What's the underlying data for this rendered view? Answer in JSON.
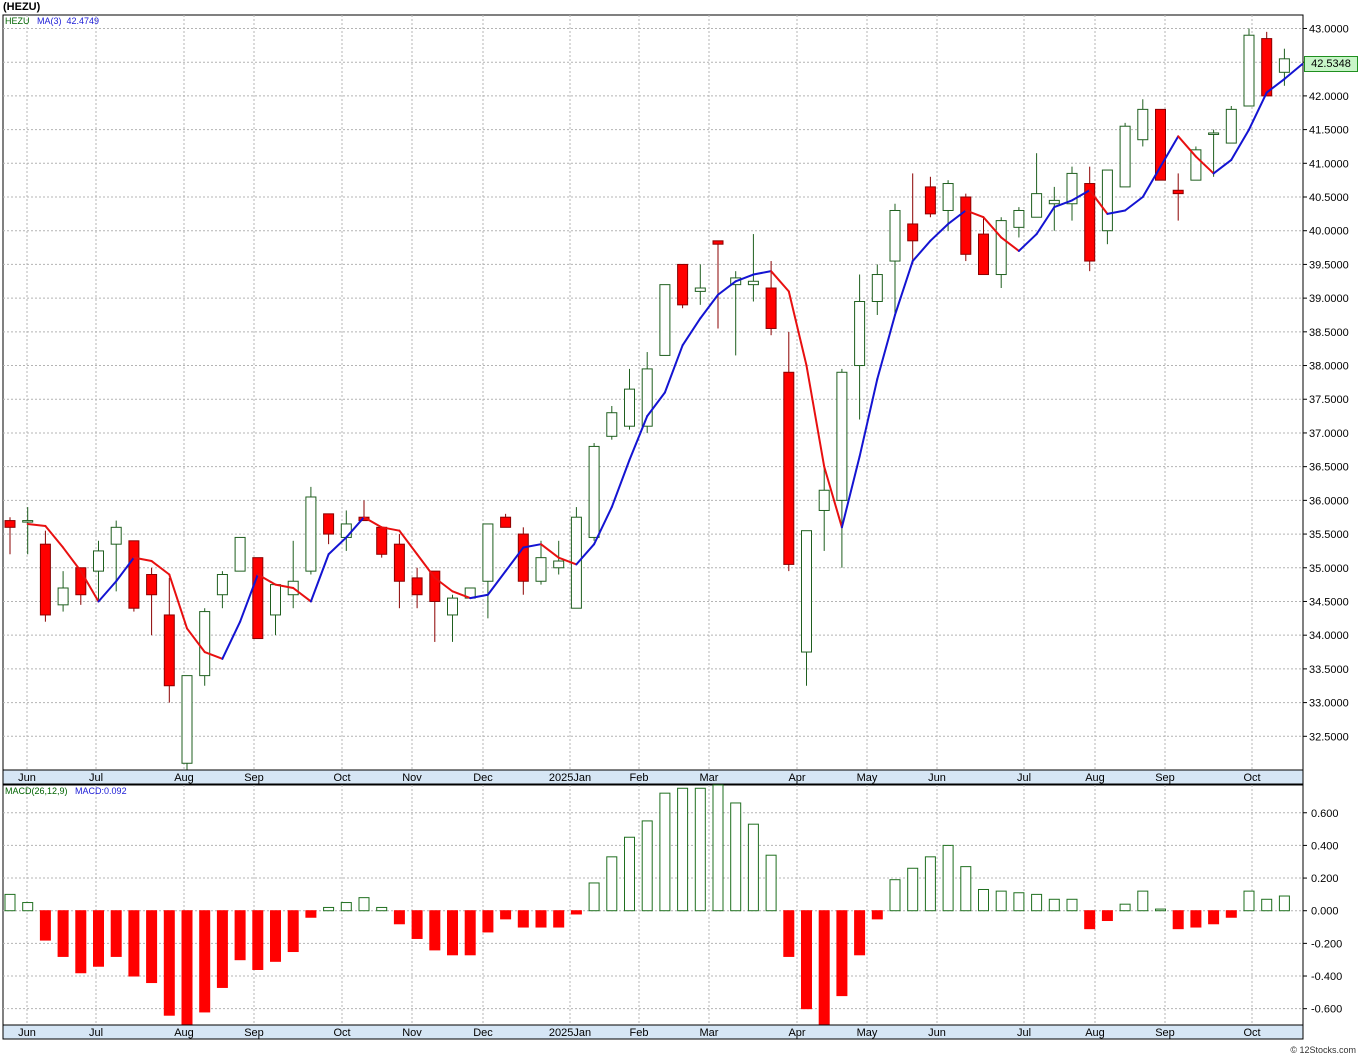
{
  "window": {
    "title": "(HEZU)",
    "credit": "© 12Stocks.com"
  },
  "price_panel": {
    "symbol": "HEZU",
    "ma_label": "MA(3)",
    "ma_value": "42.4749",
    "last_price_tag": "42.5348",
    "y_ticks": [
      "43.0000",
      "42.5000",
      "42.0000",
      "41.5000",
      "41.0000",
      "40.5000",
      "40.0000",
      "39.5000",
      "39.0000",
      "38.5000",
      "38.0000",
      "37.5000",
      "37.0000",
      "36.5000",
      "36.0000",
      "35.5000",
      "35.0000",
      "34.5000",
      "34.0000",
      "33.5000",
      "33.0000",
      "32.5000"
    ],
    "x_labels": [
      "Jun",
      "Jul",
      "Aug",
      "Sep",
      "Oct",
      "Nov",
      "Dec",
      "2025Jan",
      "Feb",
      "Mar",
      "Apr",
      "May",
      "Jun",
      "Jul",
      "Aug",
      "Sep",
      "Oct"
    ]
  },
  "macd_panel": {
    "label": "MACD(26,12,9)",
    "value_label": "MACD:0.092",
    "y_ticks": [
      "0.600",
      "0.400",
      "0.200",
      "0.000",
      "-0.200",
      "-0.400",
      "-0.600"
    ],
    "x_labels": [
      "Jun",
      "Jul",
      "Aug",
      "Sep",
      "Oct",
      "Nov",
      "Dec",
      "2025Jan",
      "Feb",
      "Mar",
      "Apr",
      "May",
      "Jun",
      "Jul",
      "Aug",
      "Sep",
      "Oct"
    ]
  },
  "colors": {
    "up": "#ffffff",
    "up_border": "#1f5f1f",
    "down": "#ff0000",
    "down_border": "#8b0000",
    "ma_up": "#1414d2",
    "ma_down": "#e81010",
    "macd_up": "#ffffff",
    "macd_up_border": "#1f6f1f",
    "macd_down": "#ff0000",
    "grid": "#b4b4b4"
  },
  "chart_data": [
    {
      "type": "candlestick",
      "title": "(HEZU)",
      "ylim": [
        32.0,
        43.2
      ],
      "series_name": "HEZU",
      "overlay": "MA(3)",
      "candles": [
        {
          "o": 35.7,
          "h": 35.75,
          "l": 35.2,
          "c": 35.6
        },
        {
          "o": 35.7,
          "h": 35.9,
          "l": 35.2,
          "c": 35.7
        },
        {
          "o": 35.35,
          "h": 35.55,
          "l": 34.2,
          "c": 34.3
        },
        {
          "o": 34.45,
          "h": 34.95,
          "l": 34.35,
          "c": 34.7
        },
        {
          "o": 35.0,
          "h": 35.0,
          "l": 34.45,
          "c": 34.6
        },
        {
          "o": 34.95,
          "h": 35.4,
          "l": 34.5,
          "c": 35.25
        },
        {
          "o": 35.35,
          "h": 35.7,
          "l": 34.65,
          "c": 35.6
        },
        {
          "o": 35.4,
          "h": 35.4,
          "l": 34.35,
          "c": 34.4
        },
        {
          "o": 34.9,
          "h": 35.0,
          "l": 34.0,
          "c": 34.6
        },
        {
          "o": 34.3,
          "h": 34.85,
          "l": 33.0,
          "c": 33.25
        },
        {
          "o": 32.1,
          "h": 33.4,
          "l": 32.0,
          "c": 33.4
        },
        {
          "o": 33.4,
          "h": 34.4,
          "l": 33.25,
          "c": 34.35
        },
        {
          "o": 34.6,
          "h": 34.95,
          "l": 34.4,
          "c": 34.9
        },
        {
          "o": 34.95,
          "h": 35.45,
          "l": 34.95,
          "c": 35.45
        },
        {
          "o": 35.15,
          "h": 35.15,
          "l": 33.95,
          "c": 33.95
        },
        {
          "o": 34.3,
          "h": 34.75,
          "l": 34.0,
          "c": 34.75
        },
        {
          "o": 34.6,
          "h": 35.4,
          "l": 34.4,
          "c": 34.8
        },
        {
          "o": 34.95,
          "h": 36.2,
          "l": 34.9,
          "c": 36.05
        },
        {
          "o": 35.8,
          "h": 35.8,
          "l": 35.35,
          "c": 35.5
        },
        {
          "o": 35.45,
          "h": 35.85,
          "l": 35.25,
          "c": 35.65
        },
        {
          "o": 35.75,
          "h": 36.0,
          "l": 35.7,
          "c": 35.7
        },
        {
          "o": 35.6,
          "h": 35.6,
          "l": 35.15,
          "c": 35.2
        },
        {
          "o": 35.35,
          "h": 35.5,
          "l": 34.4,
          "c": 34.8
        },
        {
          "o": 34.85,
          "h": 35.0,
          "l": 34.4,
          "c": 34.6
        },
        {
          "o": 34.95,
          "h": 34.95,
          "l": 33.9,
          "c": 34.5
        },
        {
          "o": 34.3,
          "h": 34.6,
          "l": 33.9,
          "c": 34.55
        },
        {
          "o": 34.55,
          "h": 34.7,
          "l": 34.55,
          "c": 34.7
        },
        {
          "o": 34.8,
          "h": 35.55,
          "l": 34.25,
          "c": 35.65
        },
        {
          "o": 35.75,
          "h": 35.8,
          "l": 35.6,
          "c": 35.6
        },
        {
          "o": 35.5,
          "h": 35.6,
          "l": 34.6,
          "c": 34.8
        },
        {
          "o": 34.8,
          "h": 35.4,
          "l": 34.75,
          "c": 35.15
        },
        {
          "o": 35.0,
          "h": 35.4,
          "l": 34.9,
          "c": 35.1
        },
        {
          "o": 34.4,
          "h": 35.9,
          "l": 34.4,
          "c": 35.75
        },
        {
          "o": 35.45,
          "h": 36.85,
          "l": 35.4,
          "c": 36.8
        },
        {
          "o": 36.95,
          "h": 37.4,
          "l": 36.9,
          "c": 37.3
        },
        {
          "o": 37.1,
          "h": 37.95,
          "l": 37.05,
          "c": 37.65
        },
        {
          "o": 37.1,
          "h": 38.2,
          "l": 37.0,
          "c": 37.95
        },
        {
          "o": 38.15,
          "h": 39.2,
          "l": 38.15,
          "c": 39.2
        },
        {
          "o": 39.5,
          "h": 39.5,
          "l": 38.85,
          "c": 38.9
        },
        {
          "o": 39.1,
          "h": 39.5,
          "l": 38.9,
          "c": 39.15
        },
        {
          "o": 39.85,
          "h": 39.85,
          "l": 38.55,
          "c": 39.8
        },
        {
          "o": 39.2,
          "h": 39.4,
          "l": 38.15,
          "c": 39.3
        },
        {
          "o": 39.2,
          "h": 39.95,
          "l": 38.95,
          "c": 39.25
        },
        {
          "o": 39.15,
          "h": 39.55,
          "l": 38.45,
          "c": 38.55
        },
        {
          "o": 37.9,
          "h": 38.5,
          "l": 34.95,
          "c": 35.05
        },
        {
          "o": 33.75,
          "h": 35.55,
          "l": 33.25,
          "c": 35.55
        },
        {
          "o": 35.85,
          "h": 36.5,
          "l": 35.25,
          "c": 36.15
        },
        {
          "o": 36.0,
          "h": 37.95,
          "l": 35.0,
          "c": 37.9
        },
        {
          "o": 38.0,
          "h": 39.35,
          "l": 37.2,
          "c": 38.95
        },
        {
          "o": 38.95,
          "h": 39.5,
          "l": 38.75,
          "c": 39.35
        },
        {
          "o": 39.55,
          "h": 40.4,
          "l": 38.75,
          "c": 40.3
        },
        {
          "o": 40.1,
          "h": 40.85,
          "l": 39.5,
          "c": 39.85
        },
        {
          "o": 40.65,
          "h": 40.8,
          "l": 40.2,
          "c": 40.25
        },
        {
          "o": 40.3,
          "h": 40.75,
          "l": 40.0,
          "c": 40.7
        },
        {
          "o": 40.5,
          "h": 40.55,
          "l": 39.55,
          "c": 39.65
        },
        {
          "o": 39.95,
          "h": 40.2,
          "l": 39.35,
          "c": 39.35
        },
        {
          "o": 39.35,
          "h": 40.2,
          "l": 39.15,
          "c": 40.15
        },
        {
          "o": 40.05,
          "h": 40.35,
          "l": 39.9,
          "c": 40.3
        },
        {
          "o": 40.2,
          "h": 41.15,
          "l": 40.2,
          "c": 40.55
        },
        {
          "o": 40.4,
          "h": 40.65,
          "l": 40.0,
          "c": 40.45
        },
        {
          "o": 40.4,
          "h": 40.95,
          "l": 40.15,
          "c": 40.85
        },
        {
          "o": 40.7,
          "h": 40.95,
          "l": 39.4,
          "c": 39.55
        },
        {
          "o": 40.0,
          "h": 40.9,
          "l": 39.8,
          "c": 40.9
        },
        {
          "o": 40.65,
          "h": 41.6,
          "l": 40.65,
          "c": 41.55
        },
        {
          "o": 41.35,
          "h": 41.95,
          "l": 41.25,
          "c": 41.8
        },
        {
          "o": 41.8,
          "h": 41.8,
          "l": 40.75,
          "c": 40.75
        },
        {
          "o": 40.6,
          "h": 40.85,
          "l": 40.15,
          "c": 40.55
        },
        {
          "o": 40.75,
          "h": 41.25,
          "l": 40.75,
          "c": 41.2
        },
        {
          "o": 41.45,
          "h": 41.5,
          "l": 40.8,
          "c": 41.45
        },
        {
          "o": 41.3,
          "h": 41.85,
          "l": 41.3,
          "c": 41.8
        },
        {
          "o": 41.85,
          "h": 43.0,
          "l": 41.85,
          "c": 42.9
        },
        {
          "o": 42.85,
          "h": 42.95,
          "l": 42.0,
          "c": 42.0
        },
        {
          "o": 42.35,
          "h": 42.7,
          "l": 42.15,
          "c": 42.55
        }
      ],
      "ma": [
        35.65,
        35.62,
        35.3,
        34.95,
        34.5,
        34.8,
        35.15,
        35.1,
        34.9,
        34.1,
        33.75,
        33.65,
        34.2,
        34.9,
        34.75,
        34.7,
        34.5,
        35.2,
        35.45,
        35.75,
        35.6,
        35.55,
        35.2,
        34.85,
        34.65,
        34.55,
        34.6,
        34.95,
        35.3,
        35.35,
        35.15,
        35.05,
        35.35,
        35.9,
        36.6,
        37.25,
        37.6,
        38.3,
        38.7,
        39.05,
        39.25,
        39.35,
        39.4,
        39.1,
        38.0,
        36.5,
        35.6,
        36.65,
        37.8,
        38.75,
        39.55,
        39.85,
        40.1,
        40.3,
        40.2,
        39.9,
        39.7,
        39.95,
        40.35,
        40.45,
        40.6,
        40.25,
        40.3,
        40.5,
        40.95,
        41.4,
        41.1,
        40.85,
        41.05,
        41.5,
        42.05,
        42.25,
        42.47
      ]
    },
    {
      "type": "bar",
      "title": "MACD(26,12,9)",
      "ylim": [
        -0.7,
        0.77
      ],
      "values": [
        0.1,
        0.05,
        -0.18,
        -0.28,
        -0.38,
        -0.34,
        -0.28,
        -0.4,
        -0.44,
        -0.64,
        -0.75,
        -0.62,
        -0.47,
        -0.3,
        -0.36,
        -0.31,
        -0.25,
        -0.04,
        0.02,
        0.05,
        0.08,
        0.02,
        -0.08,
        -0.17,
        -0.24,
        -0.27,
        -0.27,
        -0.13,
        -0.05,
        -0.1,
        -0.1,
        -0.1,
        -0.02,
        0.17,
        0.33,
        0.45,
        0.55,
        0.72,
        0.75,
        0.75,
        0.77,
        0.66,
        0.53,
        0.34,
        -0.28,
        -0.6,
        -0.72,
        -0.52,
        -0.27,
        -0.05,
        0.19,
        0.26,
        0.33,
        0.4,
        0.27,
        0.13,
        0.12,
        0.11,
        0.1,
        0.07,
        0.07,
        -0.11,
        -0.06,
        0.04,
        0.12,
        0.01,
        -0.11,
        -0.1,
        -0.08,
        -0.04,
        0.12,
        0.07,
        0.09
      ]
    }
  ]
}
